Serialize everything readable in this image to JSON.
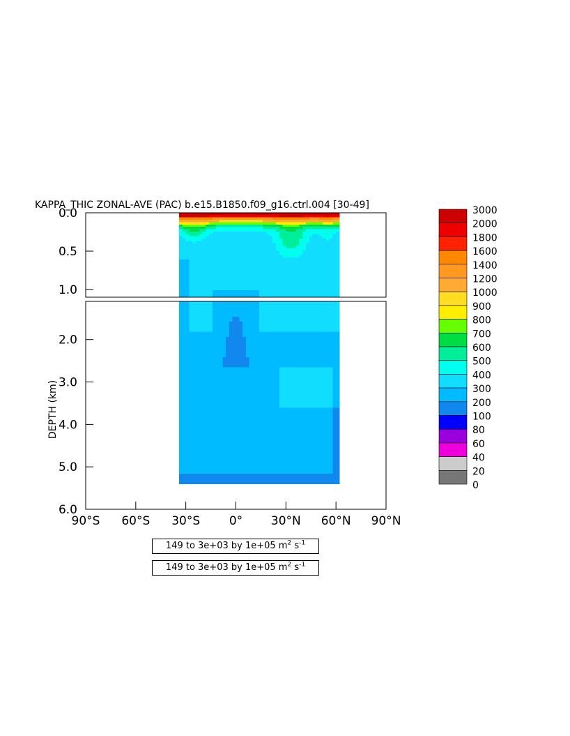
{
  "chart_data": {
    "type": "heatmap",
    "title": "KAPPA_THIC ZONAL-AVE (PAC) b.e15.B1850.f09_g16.ctrl.004 [30-49]",
    "ylabel": "DEPTH (km)",
    "x_ticks": [
      "90°S",
      "60°S",
      "30°S",
      "0°",
      "30°N",
      "60°N",
      "90°N"
    ],
    "x_tick_values": [
      -90,
      -60,
      -30,
      0,
      30,
      60,
      90
    ],
    "xlim": [
      -90,
      90
    ],
    "upper_panel": {
      "ylim": [
        0.0,
        1.1
      ],
      "y_ticks": [
        "0.0",
        "0.5",
        "1.0"
      ],
      "y_tick_values": [
        0.0,
        0.5,
        1.0
      ]
    },
    "lower_panel": {
      "ylim": [
        1.1,
        6.0
      ],
      "y_ticks": [
        "2.0",
        "3.0",
        "4.0",
        "5.0",
        "6.0"
      ],
      "y_tick_values": [
        2.0,
        3.0,
        4.0,
        5.0,
        6.0
      ]
    },
    "data_extent": {
      "lat_min": -34,
      "lat_max": 62,
      "depth_max": 5.4
    },
    "colorbar": {
      "levels": [
        0,
        20,
        40,
        60,
        80,
        100,
        200,
        300,
        400,
        500,
        600,
        700,
        800,
        900,
        1000,
        1200,
        1400,
        1600,
        1800,
        2000,
        3000
      ],
      "labels": [
        "3000",
        "2000",
        "1800",
        "1600",
        "1400",
        "1200",
        "1000",
        "900",
        "800",
        "700",
        "600",
        "500",
        "400",
        "300",
        "200",
        "100",
        "80",
        "60",
        "40",
        "20",
        "0"
      ],
      "colors": [
        "#777777",
        "#cccccc",
        "#ee00dd",
        "#9900dd",
        "#0000ff",
        "#1188ee",
        "#00bbff",
        "#11ddff",
        "#00ffee",
        "#00ee99",
        "#00dd44",
        "#66ff00",
        "#ffee00",
        "#ffdd22",
        "#ffaa33",
        "#ff9922",
        "#ff8800",
        "#ff2200",
        "#ee0000",
        "#cc0000"
      ]
    },
    "contour_info": [
      "149 to 3e+03 by 1e+05 m",
      "149 to 3e+03 by 1e+05 m"
    ],
    "contour_info_unit_tail": [
      "s",
      "s"
    ]
  }
}
